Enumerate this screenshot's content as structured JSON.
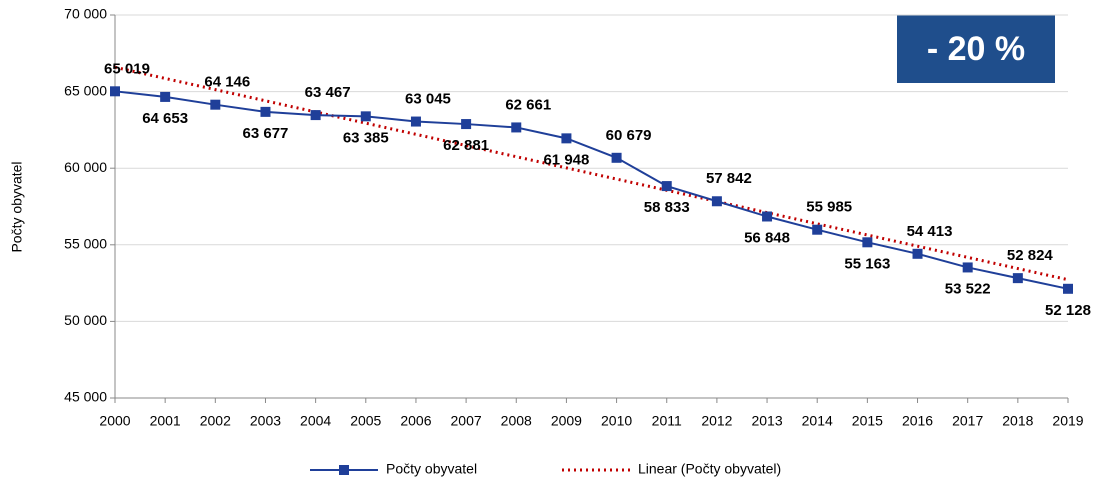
{
  "chart_data": {
    "type": "line",
    "y_label": "Počty obyvatel",
    "annotation": "- 20 %",
    "categories": [
      "2000",
      "2001",
      "2002",
      "2003",
      "2004",
      "2005",
      "2006",
      "2007",
      "2008",
      "2009",
      "2010",
      "2011",
      "2012",
      "2013",
      "2014",
      "2015",
      "2016",
      "2017",
      "2018",
      "2019"
    ],
    "series": [
      {
        "name": "Počty obyvatel",
        "color": "#1f3f99",
        "style": "solid",
        "marker": "square",
        "values": [
          65019,
          64653,
          64146,
          63677,
          63467,
          63385,
          63045,
          62881,
          62661,
          61948,
          60679,
          58833,
          57842,
          56848,
          55985,
          55163,
          54413,
          53522,
          52824,
          52128
        ],
        "value_labels": [
          "65 019",
          "64 653",
          "64 146",
          "63 677",
          "63 467",
          "63 385",
          "63 045",
          "62 881",
          "62 661",
          "61 948",
          "60 679",
          "58 833",
          "57 842",
          "56 848",
          "55 985",
          "55 163",
          "54 413",
          "53 522",
          "52 824",
          "52 128"
        ]
      },
      {
        "name": "Linear (Počty obyvatel)",
        "color": "#c00000",
        "style": "dotted",
        "values": [
          66590,
          65860,
          65130,
          64400,
          63670,
          62940,
          62210,
          61480,
          60750,
          60020,
          59290,
          58560,
          57830,
          57100,
          56370,
          55640,
          54910,
          54180,
          53450,
          52720
        ]
      }
    ],
    "ylim": [
      45000,
      70000
    ],
    "yticks": [
      {
        "value": 45000,
        "label": "45 000"
      },
      {
        "value": 50000,
        "label": "50 000"
      },
      {
        "value": 55000,
        "label": "55 000"
      },
      {
        "value": 60000,
        "label": "60 000"
      },
      {
        "value": 65000,
        "label": "65 000"
      },
      {
        "value": 70000,
        "label": "70 000"
      }
    ],
    "grid": true,
    "legend": "bottom"
  }
}
